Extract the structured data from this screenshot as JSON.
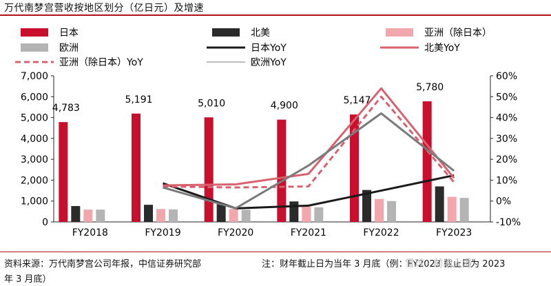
{
  "header": {
    "title": "万代南梦宫营收按地区划分（亿日元）及增速"
  },
  "footer": {
    "source": "资料来源：万代南梦宫公司年报，中信证券研究部",
    "note": "注：财年截止日为当年 3 月底（例：FY2023 截止日为 2023",
    "note_cont": "年 3 月底）",
    "watermark": "雪球 · 前浪人潘"
  },
  "colors": {
    "japan": "#c8102e",
    "na": "#2b2b2b",
    "asia": "#f2a7ac",
    "europe": "#b4b4b4",
    "japan_yoy": "#1a1a1a",
    "na_yoy": "#d9606f",
    "asia_yoy": "#d9606f",
    "europe_yoy": "#7a7a7a"
  },
  "chart_data": {
    "type": "bar",
    "categories": [
      "FY2018",
      "FY2019",
      "FY2020",
      "FY2021",
      "FY2022",
      "FY2023"
    ],
    "ylim": [
      0,
      7000
    ],
    "yticks": [
      "0",
      "1,000",
      "2,000",
      "3,000",
      "4,000",
      "5,000",
      "6,000",
      "7,000"
    ],
    "y2lim": [
      -10,
      60
    ],
    "y2ticks": [
      "-10%",
      "0%",
      "10%",
      "20%",
      "30%",
      "40%",
      "50%",
      "60%"
    ],
    "grid": false,
    "legend_placement": "top",
    "series": [
      {
        "name": "日本",
        "kind": "bar",
        "values": [
          4783,
          5191,
          5010,
          4900,
          5147,
          5780
        ],
        "labels": [
          "4,783",
          "5,191",
          "5,010",
          "4,900",
          "5,147",
          "5,780"
        ]
      },
      {
        "name": "北美",
        "kind": "bar",
        "values": [
          760,
          820,
          850,
          980,
          1530,
          1700
        ]
      },
      {
        "name": "亚洲（除日本）",
        "kind": "bar",
        "values": [
          590,
          620,
          620,
          730,
          1100,
          1200
        ]
      },
      {
        "name": "欧洲",
        "kind": "bar",
        "values": [
          590,
          600,
          580,
          700,
          1000,
          1150
        ]
      }
    ],
    "yoy_series": [
      {
        "name": "日本YoY",
        "values": [
          null,
          8.5,
          -3.5,
          -2.2,
          5,
          12.3
        ]
      },
      {
        "name": "北美YoY",
        "values": [
          null,
          7.5,
          8,
          13,
          54,
          11
        ]
      },
      {
        "name": "亚洲（除日本）YoY",
        "values": [
          null,
          7,
          6.5,
          7,
          50,
          9
        ]
      },
      {
        "name": "欧洲YoY",
        "values": [
          null,
          6.5,
          -3.5,
          17,
          42,
          14.5
        ]
      }
    ]
  }
}
